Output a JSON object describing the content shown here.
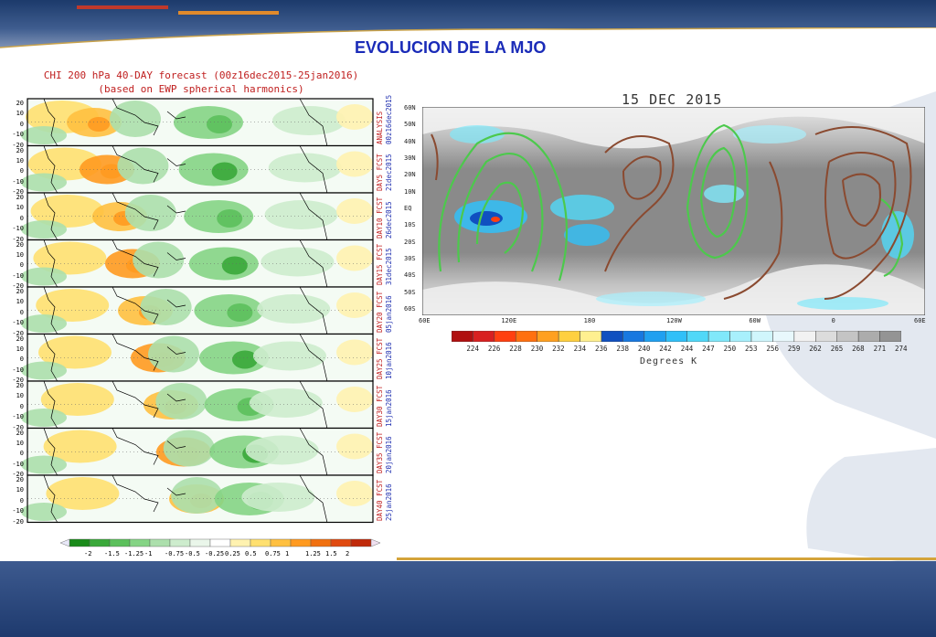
{
  "slide": {
    "title": "EVOLUCION DE LA MJO"
  },
  "left_figure": {
    "title_line1": "CHI 200 hPa 40-DAY forecast (00z16dec2015-25jan2016)",
    "title_line2": "(based on EWP spherical harmonics)",
    "y_ticks": [
      "20",
      "10",
      "0",
      "-10",
      "-20"
    ],
    "rows": [
      {
        "lead": "ANALYSIS",
        "date": "00z16dec2015"
      },
      {
        "lead": "DAY5 FCST",
        "date": "21dec2015"
      },
      {
        "lead": "DAY10 FCST",
        "date": "26dec2015"
      },
      {
        "lead": "DAY15 FCST",
        "date": "31dec2015"
      },
      {
        "lead": "DAY20 FCST",
        "date": "05jan2016"
      },
      {
        "lead": "DAY25 FCST",
        "date": "10jan2016"
      },
      {
        "lead": "DAY30 FCST",
        "date": "15jan2016"
      },
      {
        "lead": "DAY35 FCST",
        "date": "20jan2016"
      },
      {
        "lead": "DAY40 FCST",
        "date": "25jan2016"
      }
    ],
    "colorbar_labels": [
      "-2",
      "-1.5",
      "-1.25",
      "-1",
      "-0.75",
      "-0.5",
      "-0.25",
      "0.25",
      "0.5",
      "0.75",
      "1",
      "1.25",
      "1.5",
      "2"
    ],
    "colorbar_colors": [
      "#1a8a1a",
      "#3aa83a",
      "#5cc05c",
      "#85d485",
      "#acdfac",
      "#cdeccd",
      "#eaf6ea",
      "#ffffff",
      "#fff2b0",
      "#ffe070",
      "#ffc040",
      "#ff9a20",
      "#f07010",
      "#e04a10",
      "#c02a0a"
    ]
  },
  "right_figure": {
    "title": "15 DEC 2015",
    "lat_labels": [
      "60N",
      "50N",
      "40N",
      "30N",
      "20N",
      "10N",
      "EQ",
      "10S",
      "20S",
      "30S",
      "40S",
      "50S",
      "60S"
    ],
    "lon_labels": [
      "60E",
      "120E",
      "180",
      "120W",
      "60W",
      "0",
      "60E"
    ],
    "colorbar_labels": [
      "224",
      "226",
      "228",
      "230",
      "232",
      "234",
      "236",
      "238",
      "240",
      "242",
      "244",
      "247",
      "250",
      "253",
      "256",
      "259",
      "262",
      "265",
      "268",
      "271",
      "274"
    ],
    "colorbar_colors": [
      "#b01010",
      "#d82020",
      "#ff4010",
      "#ff7010",
      "#ffa020",
      "#ffd040",
      "#fff090",
      "#1050c0",
      "#1878e0",
      "#20a0f0",
      "#30c0f8",
      "#50d8f8",
      "#80e8fa",
      "#a8f0fc",
      "#d0f6fc",
      "#e8f8fc",
      "#f2f2f2",
      "#dcdcdc",
      "#c4c4c4",
      "#acacac",
      "#949494"
    ],
    "units": "Degrees K"
  }
}
